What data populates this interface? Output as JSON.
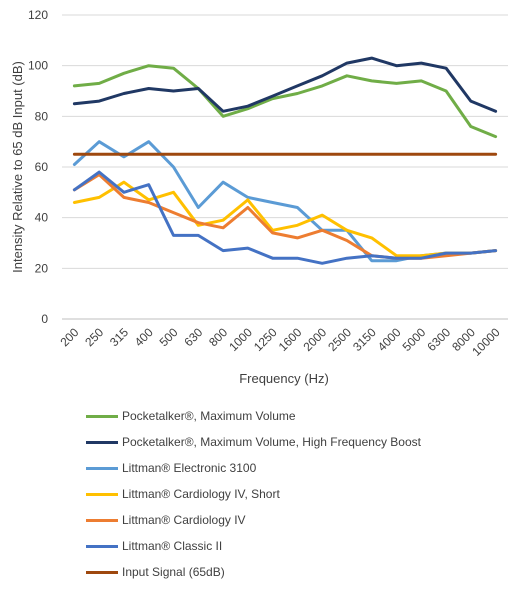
{
  "chart_data": {
    "type": "line",
    "xlabel": "Frequency (Hz)",
    "ylabel": "Intensity Relative to 65 dB Input (dB)",
    "categories": [
      "200",
      "250",
      "315",
      "400",
      "500",
      "630",
      "800",
      "1000",
      "1250",
      "1600",
      "2000",
      "2500",
      "3150",
      "4000",
      "5000",
      "6300",
      "8000",
      "10000"
    ],
    "ylim": [
      0,
      120
    ],
    "yticks": [
      0,
      20,
      40,
      60,
      80,
      100,
      120
    ],
    "grid": true,
    "legend_position": "bottom",
    "series": [
      {
        "name": "Pocketalker®, Maximum Volume",
        "color": "#70ad47",
        "values": [
          92,
          93,
          97,
          100,
          99,
          91,
          80,
          83,
          87,
          89,
          92,
          96,
          94,
          93,
          94,
          90,
          76,
          72
        ]
      },
      {
        "name": "Pocketalker®, Maximum Volume, High Frequency Boost",
        "color": "#203864",
        "values": [
          85,
          86,
          89,
          91,
          90,
          91,
          82,
          84,
          88,
          92,
          96,
          101,
          103,
          100,
          101,
          99,
          86,
          82
        ]
      },
      {
        "name": "Littman® Electronic 3100",
        "color": "#5b9bd5",
        "values": [
          61,
          70,
          64,
          70,
          60,
          44,
          54,
          48,
          46,
          44,
          35,
          35,
          23,
          23,
          25,
          26,
          26,
          27
        ]
      },
      {
        "name": "Littman® Cardiology IV, Short",
        "color": "#ffc000",
        "values": [
          46,
          48,
          54,
          47,
          50,
          37,
          39,
          47,
          35,
          37,
          41,
          35,
          32,
          25,
          25,
          26,
          26,
          27
        ]
      },
      {
        "name": "Littman® Cardiology IV",
        "color": "#ed7d31",
        "values": [
          51,
          57,
          48,
          46,
          42,
          38,
          36,
          44,
          34,
          32,
          35,
          31,
          25,
          24,
          24,
          25,
          26,
          27
        ]
      },
      {
        "name": "Littman® Classic II",
        "color": "#4472c4",
        "values": [
          51,
          58,
          50,
          53,
          33,
          33,
          27,
          28,
          24,
          24,
          22,
          24,
          25,
          24,
          24,
          26,
          26,
          27
        ]
      },
      {
        "name": "Input Signal (65dB)",
        "color": "#9e480e",
        "values": [
          65,
          65,
          65,
          65,
          65,
          65,
          65,
          65,
          65,
          65,
          65,
          65,
          65,
          65,
          65,
          65,
          65,
          65
        ]
      }
    ]
  }
}
